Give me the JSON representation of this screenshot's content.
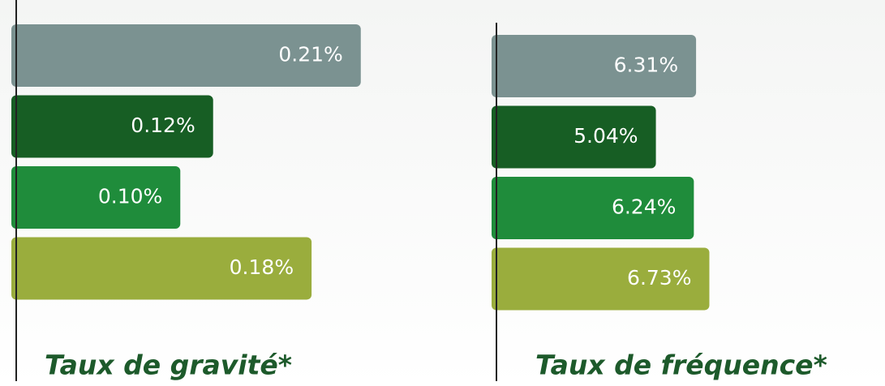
{
  "chart_data": [
    {
      "type": "bar",
      "orientation": "horizontal",
      "title": "Taux de gravité*",
      "values": [
        0.21,
        0.12,
        0.1,
        0.18
      ],
      "value_labels": [
        "0.21%",
        "0.12%",
        "0.10%",
        "0.18%"
      ],
      "colors": [
        "#7b9291",
        "#175e24",
        "#1f8c3b",
        "#9aad3d"
      ],
      "xlim": [
        0,
        0.22
      ]
    },
    {
      "type": "bar",
      "orientation": "horizontal",
      "title": "Taux de fréquence*",
      "values": [
        6.31,
        5.04,
        6.24,
        6.73
      ],
      "value_labels": [
        "6.31%",
        "5.04%",
        "6.24%",
        "6.73%"
      ],
      "colors": [
        "#7b9291",
        "#175e24",
        "#1f8c3b",
        "#9aad3d"
      ],
      "xlim": [
        0,
        7
      ]
    }
  ]
}
